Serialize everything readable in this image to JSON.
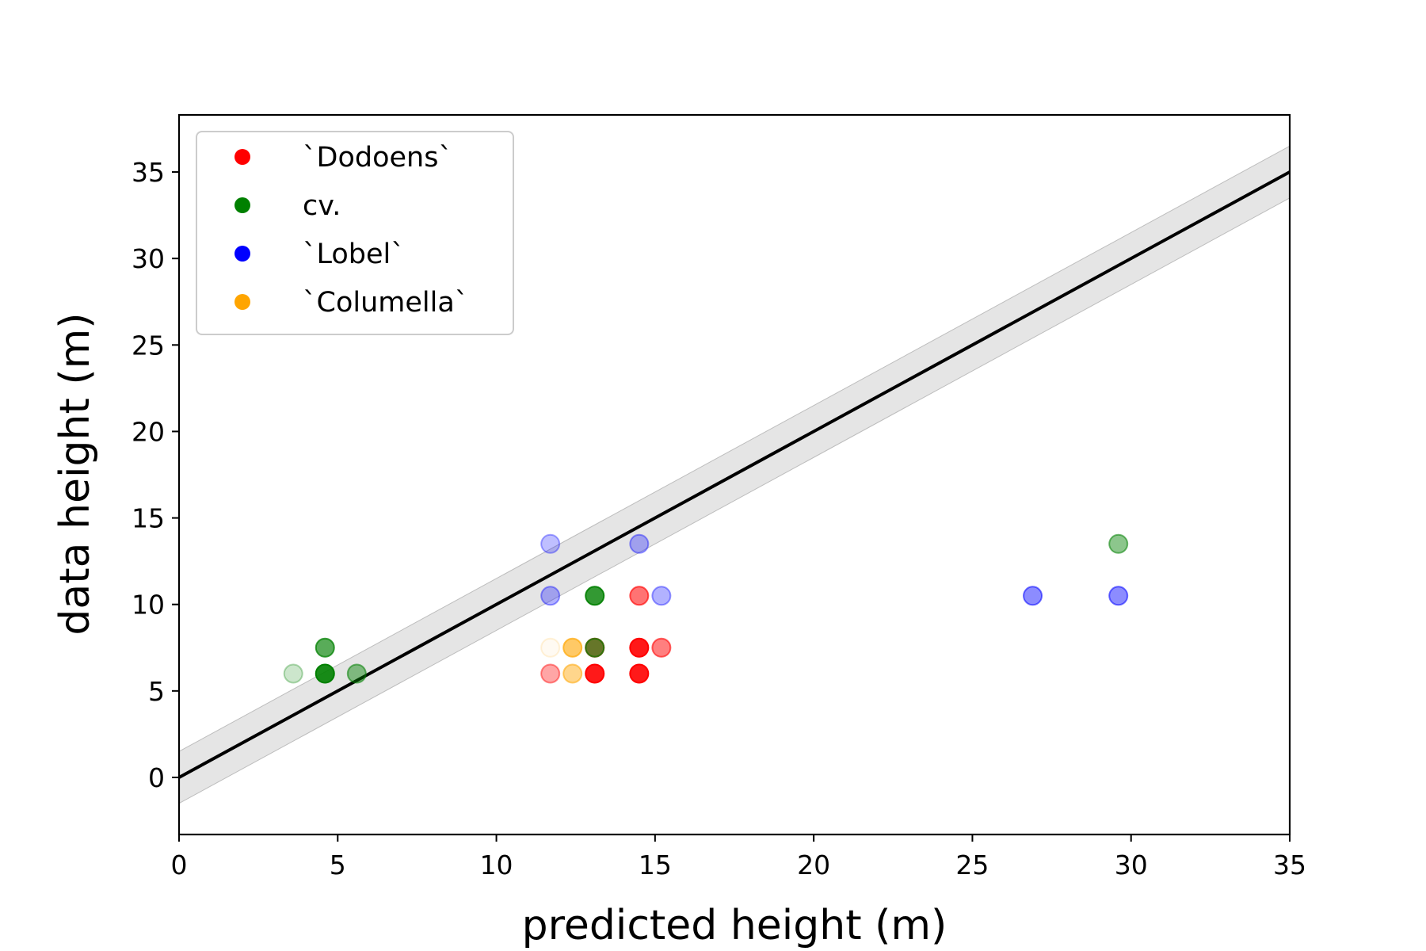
{
  "chart_data": {
    "type": "scatter",
    "title": "",
    "xlabel": "predicted height (m)",
    "ylabel": "data height (m)",
    "xlim": [
      0,
      35
    ],
    "ylim": [
      -3.3,
      38.3
    ],
    "xticks": [
      0,
      5,
      10,
      15,
      20,
      25,
      30,
      35
    ],
    "yticks": [
      0,
      5,
      10,
      15,
      20,
      25,
      30,
      35
    ],
    "grid": false,
    "legend_position": "top-left",
    "reference_line": {
      "x": [
        0,
        35
      ],
      "y": [
        0,
        35
      ],
      "color": "#000000",
      "band_halfwidth": 1.5,
      "band_color": "#d3d3d3"
    },
    "series": [
      {
        "name": "`Dodoens`",
        "color": "#ff0000",
        "points": [
          {
            "x": 11.7,
            "y": 6.0,
            "alpha": 0.35
          },
          {
            "x": 13.1,
            "y": 6.0,
            "alpha": 0.9
          },
          {
            "x": 13.1,
            "y": 7.5,
            "alpha": 0.6
          },
          {
            "x": 14.5,
            "y": 6.0,
            "alpha": 0.9
          },
          {
            "x": 14.5,
            "y": 7.5,
            "alpha": 0.9
          },
          {
            "x": 14.5,
            "y": 10.5,
            "alpha": 0.55
          },
          {
            "x": 15.2,
            "y": 7.5,
            "alpha": 0.5
          }
        ]
      },
      {
        "name": "cv.",
        "color": "#008000",
        "points": [
          {
            "x": 3.6,
            "y": 6.0,
            "alpha": 0.2
          },
          {
            "x": 4.6,
            "y": 6.0,
            "alpha": 0.9
          },
          {
            "x": 4.6,
            "y": 7.5,
            "alpha": 0.65
          },
          {
            "x": 5.6,
            "y": 6.0,
            "alpha": 0.45
          },
          {
            "x": 13.1,
            "y": 10.5,
            "alpha": 0.8
          },
          {
            "x": 13.1,
            "y": 7.5,
            "alpha": 0.6
          },
          {
            "x": 29.6,
            "y": 13.5,
            "alpha": 0.45
          }
        ]
      },
      {
        "name": "`Lobel`",
        "color": "#0000ff",
        "points": [
          {
            "x": 11.7,
            "y": 13.5,
            "alpha": 0.25
          },
          {
            "x": 11.7,
            "y": 10.5,
            "alpha": 0.3
          },
          {
            "x": 14.5,
            "y": 13.5,
            "alpha": 0.3
          },
          {
            "x": 15.2,
            "y": 10.5,
            "alpha": 0.3
          },
          {
            "x": 26.9,
            "y": 10.5,
            "alpha": 0.45
          },
          {
            "x": 29.6,
            "y": 10.5,
            "alpha": 0.45
          }
        ]
      },
      {
        "name": "`Columella`",
        "color": "#ffa500",
        "points": [
          {
            "x": 12.4,
            "y": 6.0,
            "alpha": 0.45
          },
          {
            "x": 12.4,
            "y": 7.5,
            "alpha": 0.6
          },
          {
            "x": 11.7,
            "y": 7.5,
            "alpha": 0.05
          }
        ]
      }
    ]
  }
}
